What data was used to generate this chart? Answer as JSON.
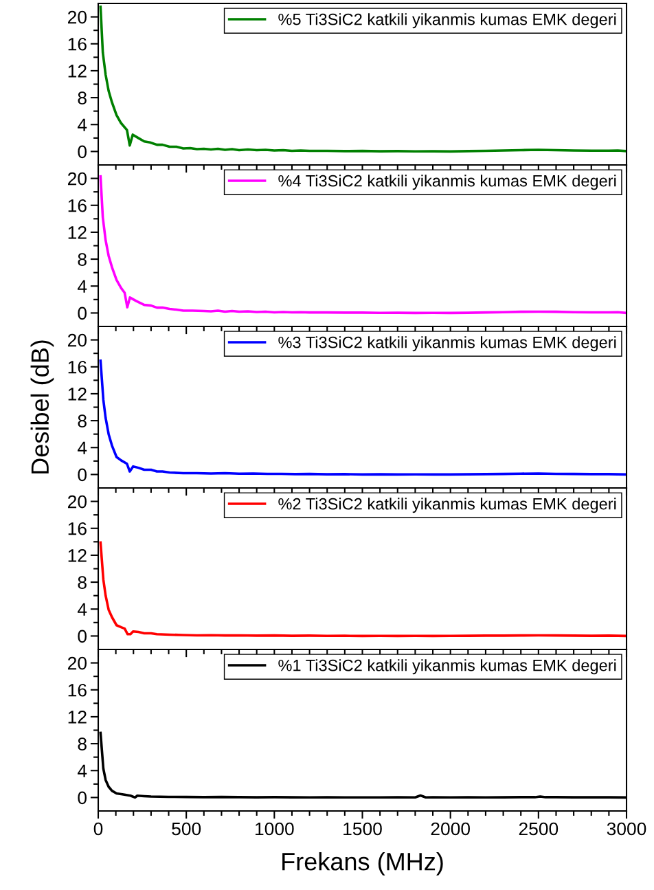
{
  "chart_data": [
    {
      "type": "line",
      "tick_labels": "y",
      "legend": "top right",
      "xlim": [
        0,
        3000
      ],
      "ylim": [
        -2,
        22
      ],
      "xticks": [
        0,
        {
          "value": 100,
          "label": null
        },
        {
          "value": 200,
          "label": null
        },
        {
          "value": 300,
          "label": null
        },
        {
          "value": 400,
          "label": null
        },
        500,
        {
          "value": 600,
          "label": null
        },
        {
          "value": 700,
          "label": null
        },
        {
          "value": 800,
          "label": null
        },
        {
          "value": 900,
          "label": null
        },
        1000,
        {
          "value": 1100,
          "label": null
        },
        {
          "value": 1200,
          "label": null
        },
        {
          "value": 1300,
          "label": null
        },
        {
          "value": 1400,
          "label": null
        },
        1500,
        {
          "value": 1600,
          "label": null
        },
        {
          "value": 1700,
          "label": null
        },
        {
          "value": 1800,
          "label": null
        },
        {
          "value": 1900,
          "label": null
        },
        2000,
        {
          "value": 2100,
          "label": null
        },
        {
          "value": 2200,
          "label": null
        },
        {
          "value": 2300,
          "label": null
        },
        {
          "value": 2400,
          "label": null
        },
        2500,
        {
          "value": 2600,
          "label": null
        },
        {
          "value": 2700,
          "label": null
        },
        {
          "value": 2800,
          "label": null
        },
        {
          "value": 2900,
          "label": null
        },
        3000
      ],
      "yticks": [
        0,
        {
          "value": 2,
          "label": null
        },
        4,
        {
          "value": 6,
          "label": null
        },
        8,
        {
          "value": 10,
          "label": null
        },
        12,
        {
          "value": 14,
          "label": null
        },
        16,
        {
          "value": 18,
          "label": null
        },
        20
      ],
      "x": [
        13,
        26,
        42,
        59,
        78,
        104,
        130,
        163,
        179,
        196,
        228,
        261,
        294,
        333,
        365,
        405,
        444,
        483,
        522,
        561,
        600,
        640,
        680,
        720,
        760,
        800,
        850,
        900,
        950,
        1000,
        1050,
        1100,
        1150,
        1200,
        1300,
        1400,
        1500,
        1600,
        1700,
        1800,
        1900,
        2000,
        2100,
        2200,
        2300,
        2400,
        2500,
        2600,
        2700,
        2800,
        2900,
        2950,
        3000
      ],
      "series": [
        {
          "name": "%5 Ti3SiC2 katkili yikanmis kumas EMK degeri",
          "color": "#008000",
          "values": [
            21.5,
            14.7,
            11.4,
            9.0,
            7.3,
            5.4,
            4.2,
            3.2,
            0.9,
            2.5,
            2.0,
            1.5,
            1.35,
            1.0,
            1.0,
            0.7,
            0.7,
            0.45,
            0.5,
            0.35,
            0.4,
            0.3,
            0.4,
            0.25,
            0.35,
            0.2,
            0.3,
            0.2,
            0.25,
            0.15,
            0.2,
            0.1,
            0.15,
            0.1,
            0.1,
            0.05,
            0.08,
            0.03,
            0.05,
            0.02,
            0.03,
            0.0,
            0.05,
            0.1,
            0.15,
            0.2,
            0.25,
            0.2,
            0.15,
            0.12,
            0.12,
            0.15,
            0.05
          ]
        }
      ]
    },
    {
      "type": "line",
      "tick_labels": "y",
      "legend": "top right",
      "xlim": [
        0,
        3000
      ],
      "ylim": [
        -2,
        22
      ],
      "xticks": [
        0,
        {
          "value": 100,
          "label": null
        },
        {
          "value": 200,
          "label": null
        },
        {
          "value": 300,
          "label": null
        },
        {
          "value": 400,
          "label": null
        },
        500,
        {
          "value": 600,
          "label": null
        },
        {
          "value": 700,
          "label": null
        },
        {
          "value": 800,
          "label": null
        },
        {
          "value": 900,
          "label": null
        },
        1000,
        {
          "value": 1100,
          "label": null
        },
        {
          "value": 1200,
          "label": null
        },
        {
          "value": 1300,
          "label": null
        },
        {
          "value": 1400,
          "label": null
        },
        1500,
        {
          "value": 1600,
          "label": null
        },
        {
          "value": 1700,
          "label": null
        },
        {
          "value": 1800,
          "label": null
        },
        {
          "value": 1900,
          "label": null
        },
        2000,
        {
          "value": 2100,
          "label": null
        },
        {
          "value": 2200,
          "label": null
        },
        {
          "value": 2300,
          "label": null
        },
        {
          "value": 2400,
          "label": null
        },
        2500,
        {
          "value": 2600,
          "label": null
        },
        {
          "value": 2700,
          "label": null
        },
        {
          "value": 2800,
          "label": null
        },
        {
          "value": 2900,
          "label": null
        },
        3000
      ],
      "yticks": [
        0,
        {
          "value": 2,
          "label": null
        },
        4,
        {
          "value": 6,
          "label": null
        },
        8,
        {
          "value": 10,
          "label": null
        },
        12,
        {
          "value": 14,
          "label": null
        },
        16,
        {
          "value": 18,
          "label": null
        },
        20
      ],
      "x": [
        13,
        26,
        42,
        59,
        78,
        104,
        130,
        150,
        165,
        180,
        215,
        261,
        300,
        333,
        365,
        405,
        444,
        483,
        535,
        600,
        640,
        680,
        720,
        760,
        800,
        850,
        900,
        950,
        1000,
        1050,
        1100,
        1150,
        1200,
        1300,
        1400,
        1500,
        1600,
        1700,
        1800,
        1900,
        2000,
        2100,
        2200,
        2300,
        2400,
        2500,
        2600,
        2700,
        2800,
        2900,
        2950,
        3000
      ],
      "series": [
        {
          "name": "%4 Ti3SiC2 katkili yikanmis kumas EMK degeri",
          "color": "#ff00ff",
          "values": [
            20.3,
            14.2,
            10.8,
            8.5,
            6.8,
            4.9,
            3.7,
            3.0,
            0.85,
            2.3,
            1.8,
            1.2,
            1.1,
            0.8,
            0.8,
            0.6,
            0.5,
            0.35,
            0.35,
            0.3,
            0.25,
            0.35,
            0.2,
            0.3,
            0.2,
            0.25,
            0.15,
            0.2,
            0.1,
            0.15,
            0.1,
            0.12,
            0.08,
            0.08,
            0.05,
            0.05,
            0.02,
            0.03,
            0.0,
            0.02,
            0.0,
            0.03,
            0.08,
            0.12,
            0.18,
            0.2,
            0.18,
            0.12,
            0.1,
            0.1,
            0.12,
            0.0
          ]
        }
      ]
    },
    {
      "type": "line",
      "tick_labels": "y",
      "legend": "top right",
      "ylabel": "Desibel (dB)",
      "xlim": [
        0,
        3000
      ],
      "ylim": [
        -2,
        22
      ],
      "xticks": [
        0,
        {
          "value": 100,
          "label": null
        },
        {
          "value": 200,
          "label": null
        },
        {
          "value": 300,
          "label": null
        },
        {
          "value": 400,
          "label": null
        },
        500,
        {
          "value": 600,
          "label": null
        },
        {
          "value": 700,
          "label": null
        },
        {
          "value": 800,
          "label": null
        },
        {
          "value": 900,
          "label": null
        },
        1000,
        {
          "value": 1100,
          "label": null
        },
        {
          "value": 1200,
          "label": null
        },
        {
          "value": 1300,
          "label": null
        },
        {
          "value": 1400,
          "label": null
        },
        1500,
        {
          "value": 1600,
          "label": null
        },
        {
          "value": 1700,
          "label": null
        },
        {
          "value": 1800,
          "label": null
        },
        {
          "value": 1900,
          "label": null
        },
        2000,
        {
          "value": 2100,
          "label": null
        },
        {
          "value": 2200,
          "label": null
        },
        {
          "value": 2300,
          "label": null
        },
        {
          "value": 2400,
          "label": null
        },
        2500,
        {
          "value": 2600,
          "label": null
        },
        {
          "value": 2700,
          "label": null
        },
        {
          "value": 2800,
          "label": null
        },
        {
          "value": 2900,
          "label": null
        },
        3000
      ],
      "yticks": [
        0,
        {
          "value": 2,
          "label": null
        },
        4,
        {
          "value": 6,
          "label": null
        },
        8,
        {
          "value": 10,
          "label": null
        },
        12,
        {
          "value": 14,
          "label": null
        },
        16,
        {
          "value": 18,
          "label": null
        },
        20
      ],
      "x": [
        13,
        29,
        42,
        59,
        78,
        104,
        130,
        163,
        179,
        198,
        228,
        261,
        300,
        333,
        365,
        405,
        483,
        560,
        640,
        720,
        800,
        880,
        960,
        1040,
        1120,
        1200,
        1300,
        1400,
        1500,
        1600,
        1700,
        1800,
        1900,
        2000,
        2100,
        2200,
        2300,
        2400,
        2500,
        2600,
        2700,
        2800,
        2900,
        3000
      ],
      "series": [
        {
          "name": "%3 Ti3SiC2 katkili yikanmis kumas EMK degeri",
          "color": "#0000ff",
          "values": [
            16.9,
            11.1,
            8.4,
            6.0,
            4.3,
            2.6,
            2.1,
            1.6,
            0.45,
            1.2,
            1.0,
            0.7,
            0.7,
            0.45,
            0.45,
            0.3,
            0.2,
            0.2,
            0.15,
            0.2,
            0.12,
            0.15,
            0.1,
            0.1,
            0.05,
            0.08,
            0.03,
            0.05,
            0.0,
            0.03,
            0.0,
            0.02,
            0.0,
            0.0,
            0.03,
            0.05,
            0.08,
            0.12,
            0.15,
            0.1,
            0.08,
            0.05,
            0.05,
            0.0
          ]
        }
      ]
    },
    {
      "type": "line",
      "tick_labels": "y",
      "legend": "top right",
      "xlim": [
        0,
        3000
      ],
      "ylim": [
        -2,
        22
      ],
      "xticks": [
        0,
        {
          "value": 100,
          "label": null
        },
        {
          "value": 200,
          "label": null
        },
        {
          "value": 300,
          "label": null
        },
        {
          "value": 400,
          "label": null
        },
        500,
        {
          "value": 600,
          "label": null
        },
        {
          "value": 700,
          "label": null
        },
        {
          "value": 800,
          "label": null
        },
        {
          "value": 900,
          "label": null
        },
        1000,
        {
          "value": 1100,
          "label": null
        },
        {
          "value": 1200,
          "label": null
        },
        {
          "value": 1300,
          "label": null
        },
        {
          "value": 1400,
          "label": null
        },
        1500,
        {
          "value": 1600,
          "label": null
        },
        {
          "value": 1700,
          "label": null
        },
        {
          "value": 1800,
          "label": null
        },
        {
          "value": 1900,
          "label": null
        },
        2000,
        {
          "value": 2100,
          "label": null
        },
        {
          "value": 2200,
          "label": null
        },
        {
          "value": 2300,
          "label": null
        },
        {
          "value": 2400,
          "label": null
        },
        2500,
        {
          "value": 2600,
          "label": null
        },
        {
          "value": 2700,
          "label": null
        },
        {
          "value": 2800,
          "label": null
        },
        {
          "value": 2900,
          "label": null
        },
        3000
      ],
      "yticks": [
        0,
        {
          "value": 2,
          "label": null
        },
        4,
        {
          "value": 6,
          "label": null
        },
        8,
        {
          "value": 10,
          "label": null
        },
        12,
        {
          "value": 14,
          "label": null
        },
        16,
        {
          "value": 18,
          "label": null
        },
        20
      ],
      "x": [
        13,
        29,
        42,
        59,
        78,
        104,
        130,
        150,
        167,
        183,
        198,
        228,
        261,
        300,
        333,
        405,
        480,
        560,
        640,
        720,
        800,
        900,
        1000,
        1100,
        1200,
        1300,
        1400,
        1500,
        1600,
        1700,
        1800,
        1900,
        2000,
        2100,
        2200,
        2300,
        2400,
        2500,
        2600,
        2700,
        2800,
        2900,
        3000
      ],
      "series": [
        {
          "name": "%2 Ti3SiC2 katkili yikanmis kumas EMK degeri",
          "color": "#ff0000",
          "values": [
            13.9,
            8.4,
            6.0,
            3.9,
            2.8,
            1.6,
            1.3,
            1.1,
            0.27,
            0.27,
            0.68,
            0.6,
            0.4,
            0.4,
            0.27,
            0.2,
            0.15,
            0.1,
            0.12,
            0.08,
            0.1,
            0.05,
            0.08,
            0.03,
            0.05,
            0.02,
            0.03,
            0.0,
            0.02,
            0.0,
            0.02,
            0.0,
            0.02,
            0.03,
            0.05,
            0.05,
            0.08,
            0.1,
            0.08,
            0.05,
            0.03,
            0.05,
            0.0
          ]
        }
      ]
    },
    {
      "type": "line",
      "legend": "top right",
      "xlabel": "Frekans (MHz)",
      "xlim": [
        0,
        3000
      ],
      "ylim": [
        -2,
        22
      ],
      "xticks": [
        0,
        {
          "value": 100,
          "label": null
        },
        {
          "value": 200,
          "label": null
        },
        {
          "value": 300,
          "label": null
        },
        {
          "value": 400,
          "label": null
        },
        500,
        {
          "value": 600,
          "label": null
        },
        {
          "value": 700,
          "label": null
        },
        {
          "value": 800,
          "label": null
        },
        {
          "value": 900,
          "label": null
        },
        1000,
        {
          "value": 1100,
          "label": null
        },
        {
          "value": 1200,
          "label": null
        },
        {
          "value": 1300,
          "label": null
        },
        {
          "value": 1400,
          "label": null
        },
        1500,
        {
          "value": 1600,
          "label": null
        },
        {
          "value": 1700,
          "label": null
        },
        {
          "value": 1800,
          "label": null
        },
        {
          "value": 1900,
          "label": null
        },
        2000,
        {
          "value": 2100,
          "label": null
        },
        {
          "value": 2200,
          "label": null
        },
        {
          "value": 2300,
          "label": null
        },
        {
          "value": 2400,
          "label": null
        },
        2500,
        {
          "value": 2600,
          "label": null
        },
        {
          "value": 2700,
          "label": null
        },
        {
          "value": 2800,
          "label": null
        },
        {
          "value": 2900,
          "label": null
        },
        3000
      ],
      "yticks": [
        0,
        {
          "value": 2,
          "label": null
        },
        4,
        {
          "value": 6,
          "label": null
        },
        8,
        {
          "value": 10,
          "label": null
        },
        12,
        {
          "value": 14,
          "label": null
        },
        16,
        {
          "value": 18,
          "label": null
        },
        20
      ],
      "x": [
        13,
        29,
        42,
        59,
        78,
        104,
        143,
        183,
        209,
        222,
        261,
        300,
        400,
        500,
        600,
        700,
        800,
        900,
        1000,
        1100,
        1200,
        1300,
        1400,
        1500,
        1600,
        1700,
        1800,
        1830,
        1860,
        1900,
        2000,
        2100,
        2200,
        2300,
        2400,
        2480,
        2510,
        2540,
        2600,
        2700,
        2800,
        2900,
        3000
      ],
      "series": [
        {
          "name": "%1 Ti3SiC2 katkili yikanmis kumas EMK degeri",
          "color": "#000000",
          "values": [
            9.6,
            4.3,
            2.6,
            1.6,
            1.0,
            0.6,
            0.45,
            0.27,
            0.0,
            0.27,
            0.2,
            0.15,
            0.1,
            0.08,
            0.05,
            0.08,
            0.05,
            0.03,
            0.05,
            0.03,
            0.02,
            0.03,
            0.02,
            0.02,
            0.02,
            0.03,
            0.02,
            0.3,
            0.02,
            0.03,
            0.02,
            0.03,
            0.02,
            0.03,
            0.05,
            0.05,
            0.15,
            0.05,
            0.05,
            0.03,
            0.03,
            0.03,
            0.0
          ]
        }
      ]
    }
  ]
}
